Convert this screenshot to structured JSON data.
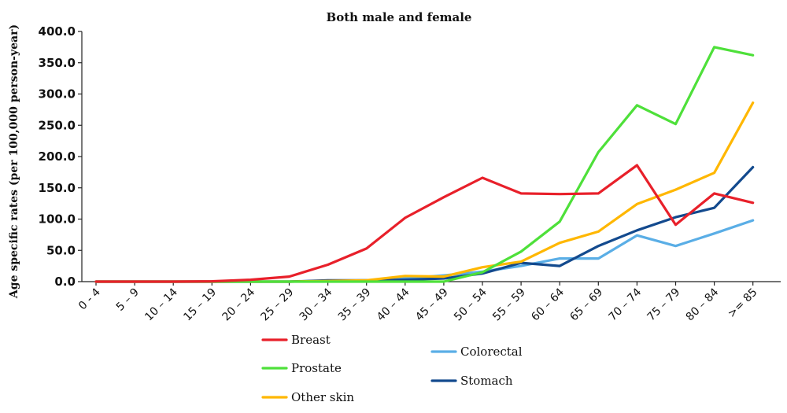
{
  "chart_data": {
    "type": "line",
    "title": "Both male and female",
    "xlabel": "",
    "ylabel": "Age specific rates (per 100,000 person-year)",
    "ylim": [
      0,
      400
    ],
    "yticks": [
      "0.0",
      "50.0",
      "100.0",
      "150.0",
      "200.0",
      "250.0",
      "300.0",
      "350.0",
      "400.0"
    ],
    "categories": [
      "0 - 4",
      "5 – 9",
      "10 – 14",
      "15 – 19",
      "20 – 24",
      "25 – 29",
      "30 – 34",
      "35 – 39",
      "40 – 44",
      "45 – 49",
      "50 – 54",
      "55 – 59",
      "60 – 64",
      "65 – 69",
      "70 – 74",
      "75 – 79",
      "80 – 84",
      ">= 85"
    ],
    "grid": false,
    "legend_position": "bottom",
    "series": [
      {
        "name": "Breast",
        "color": "#e8202a",
        "values": [
          0,
          0,
          0,
          0.5,
          3,
          8,
          27,
          53,
          102,
          135,
          166,
          141,
          140,
          141,
          186,
          91,
          141,
          126
        ]
      },
      {
        "name": "Prostate",
        "color": "#4ee03a",
        "values": [
          0,
          0,
          0,
          0,
          0,
          0,
          0,
          0,
          0,
          0,
          15,
          48,
          96,
          207,
          282,
          252,
          375,
          362
        ]
      },
      {
        "name": "Other skin",
        "color": "#ffb700",
        "values": [
          0,
          0,
          0,
          0,
          0,
          0,
          1,
          2,
          9,
          8,
          23,
          32,
          62,
          80,
          124,
          147,
          174,
          286
        ]
      },
      {
        "name": "Colorectal",
        "color": "#5aaee6",
        "values": [
          0,
          0,
          0,
          0,
          0,
          0,
          1,
          2,
          5,
          10,
          16,
          25,
          37,
          37,
          74,
          57,
          77,
          98
        ]
      },
      {
        "name": "Stomach",
        "color": "#134a8e",
        "values": [
          0,
          0,
          0,
          0,
          0,
          0,
          2,
          2,
          3,
          5,
          13,
          30,
          25,
          57,
          82,
          103,
          118,
          183
        ]
      }
    ]
  }
}
